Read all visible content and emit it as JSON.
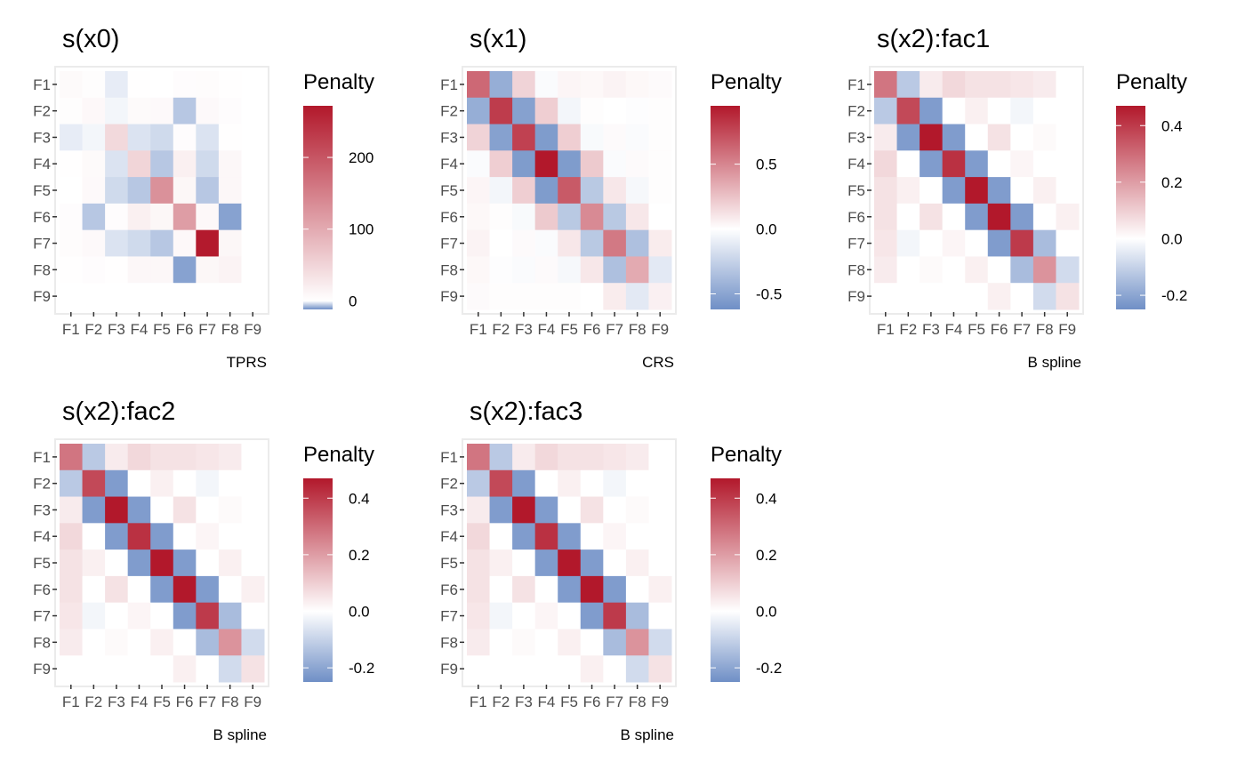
{
  "chart_data": [
    {
      "type": "heatmap",
      "title": "s(x0)",
      "caption": "TPRS",
      "legend_title": "Penalty",
      "categories": [
        "F1",
        "F2",
        "F3",
        "F4",
        "F5",
        "F6",
        "F7",
        "F8",
        "F9"
      ],
      "range": [
        -12,
        272
      ],
      "legend_ticks": [
        0,
        100,
        200
      ],
      "legend_tick_labels": [
        "0",
        "100",
        "200"
      ],
      "colors": {
        "low": "#6f8fc6",
        "mid": "#ffffff",
        "high": "#b2182b"
      },
      "values": [
        [
          6,
          2,
          -2,
          1,
          0,
          3,
          4,
          1,
          0
        ],
        [
          2,
          8,
          -1,
          6,
          7,
          -6,
          7,
          3,
          0
        ],
        [
          -2,
          -1,
          45,
          -3,
          -4,
          3,
          -3,
          1,
          0
        ],
        [
          1,
          6,
          -3,
          50,
          -6,
          18,
          -4,
          9,
          0
        ],
        [
          0,
          7,
          -4,
          -6,
          130,
          10,
          -6,
          9,
          0
        ],
        [
          3,
          -6,
          3,
          18,
          10,
          115,
          8,
          -10,
          0
        ],
        [
          4,
          7,
          -3,
          -4,
          -6,
          8,
          270,
          10,
          0
        ],
        [
          1,
          3,
          1,
          9,
          9,
          -10,
          10,
          14,
          0
        ],
        [
          0,
          0,
          0,
          0,
          0,
          0,
          0,
          0,
          0
        ]
      ]
    },
    {
      "type": "heatmap",
      "title": "s(x1)",
      "caption": "CRS",
      "legend_title": "Penalty",
      "categories": [
        "F1",
        "F2",
        "F3",
        "F4",
        "F5",
        "F6",
        "F7",
        "F8",
        "F9"
      ],
      "range": [
        -0.62,
        0.95
      ],
      "legend_ticks": [
        -0.5,
        0.0,
        0.5
      ],
      "legend_tick_labels": [
        "-0.5",
        "0.0",
        "0.5"
      ],
      "colors": {
        "low": "#6f8fc6",
        "mid": "#ffffff",
        "high": "#b2182b"
      },
      "values": [
        [
          0.62,
          -0.45,
          0.18,
          -0.02,
          0.04,
          0.03,
          0.05,
          0.03,
          0.02
        ],
        [
          -0.45,
          0.8,
          -0.52,
          0.2,
          -0.05,
          0.01,
          0.0,
          -0.01,
          0.01
        ],
        [
          0.18,
          -0.52,
          0.78,
          -0.55,
          0.2,
          -0.03,
          0.02,
          -0.02,
          0.01
        ],
        [
          -0.02,
          0.2,
          -0.55,
          0.95,
          -0.55,
          0.22,
          -0.02,
          0.02,
          0.01
        ],
        [
          0.04,
          -0.05,
          0.2,
          -0.55,
          0.68,
          -0.3,
          0.1,
          -0.04,
          0.01
        ],
        [
          0.03,
          0.01,
          -0.03,
          0.22,
          -0.3,
          0.48,
          -0.3,
          0.1,
          0.0
        ],
        [
          0.05,
          0.0,
          0.02,
          -0.02,
          0.1,
          -0.3,
          0.55,
          -0.35,
          0.08
        ],
        [
          0.03,
          -0.01,
          -0.02,
          0.02,
          -0.04,
          0.1,
          -0.35,
          0.35,
          -0.12
        ],
        [
          0.02,
          0.01,
          0.01,
          0.01,
          0.01,
          0.0,
          0.08,
          -0.12,
          0.06
        ]
      ]
    },
    {
      "type": "heatmap",
      "title": "s(x2):fac1",
      "caption": "B spline",
      "legend_title": "Penalty",
      "categories": [
        "F1",
        "F2",
        "F3",
        "F4",
        "F5",
        "F6",
        "F7",
        "F8",
        "F9"
      ],
      "range": [
        -0.25,
        0.47
      ],
      "legend_ticks": [
        -0.2,
        0.0,
        0.2,
        0.4
      ],
      "legend_tick_labels": [
        "-0.2",
        "0.0",
        "0.2",
        "0.4"
      ],
      "colors": {
        "low": "#6f8fc6",
        "mid": "#ffffff",
        "high": "#b2182b"
      },
      "values": [
        [
          0.28,
          -0.12,
          0.04,
          0.08,
          0.06,
          0.06,
          0.05,
          0.04,
          0.0
        ],
        [
          -0.12,
          0.37,
          -0.22,
          0.0,
          0.03,
          0.0,
          -0.02,
          0.0,
          0.0
        ],
        [
          0.04,
          -0.22,
          0.47,
          -0.22,
          0.0,
          0.06,
          0.0,
          0.01,
          0.0
        ],
        [
          0.08,
          0.0,
          -0.22,
          0.42,
          -0.22,
          0.0,
          0.02,
          0.0,
          0.0
        ],
        [
          0.06,
          0.03,
          0.0,
          -0.22,
          0.47,
          -0.22,
          0.0,
          0.03,
          0.0
        ],
        [
          0.06,
          0.0,
          0.06,
          0.0,
          -0.22,
          0.47,
          -0.22,
          0.0,
          0.03
        ],
        [
          0.05,
          -0.02,
          0.0,
          0.02,
          0.0,
          -0.22,
          0.4,
          -0.15,
          0.0
        ],
        [
          0.04,
          0.0,
          0.01,
          0.0,
          0.03,
          0.0,
          -0.15,
          0.22,
          -0.08
        ],
        [
          0.0,
          0.0,
          0.0,
          0.0,
          0.0,
          0.03,
          0.0,
          -0.08,
          0.06
        ]
      ]
    },
    {
      "type": "heatmap",
      "title": "s(x2):fac2",
      "caption": "B spline",
      "legend_title": "Penalty",
      "categories": [
        "F1",
        "F2",
        "F3",
        "F4",
        "F5",
        "F6",
        "F7",
        "F8",
        "F9"
      ],
      "range": [
        -0.25,
        0.47
      ],
      "legend_ticks": [
        -0.2,
        0.0,
        0.2,
        0.4
      ],
      "legend_tick_labels": [
        "-0.2",
        "0.0",
        "0.2",
        "0.4"
      ],
      "colors": {
        "low": "#6f8fc6",
        "mid": "#ffffff",
        "high": "#b2182b"
      },
      "values": [
        [
          0.28,
          -0.12,
          0.04,
          0.08,
          0.06,
          0.06,
          0.05,
          0.04,
          0.0
        ],
        [
          -0.12,
          0.37,
          -0.22,
          0.0,
          0.03,
          0.0,
          -0.02,
          0.0,
          0.0
        ],
        [
          0.04,
          -0.22,
          0.47,
          -0.22,
          0.0,
          0.06,
          0.0,
          0.01,
          0.0
        ],
        [
          0.08,
          0.0,
          -0.22,
          0.42,
          -0.22,
          0.0,
          0.02,
          0.0,
          0.0
        ],
        [
          0.06,
          0.03,
          0.0,
          -0.22,
          0.47,
          -0.22,
          0.0,
          0.03,
          0.0
        ],
        [
          0.06,
          0.0,
          0.06,
          0.0,
          -0.22,
          0.47,
          -0.22,
          0.0,
          0.03
        ],
        [
          0.05,
          -0.02,
          0.0,
          0.02,
          0.0,
          -0.22,
          0.4,
          -0.15,
          0.0
        ],
        [
          0.04,
          0.0,
          0.01,
          0.0,
          0.03,
          0.0,
          -0.15,
          0.22,
          -0.08
        ],
        [
          0.0,
          0.0,
          0.0,
          0.0,
          0.0,
          0.03,
          0.0,
          -0.08,
          0.06
        ]
      ]
    },
    {
      "type": "heatmap",
      "title": "s(x2):fac3",
      "caption": "B spline",
      "legend_title": "Penalty",
      "categories": [
        "F1",
        "F2",
        "F3",
        "F4",
        "F5",
        "F6",
        "F7",
        "F8",
        "F9"
      ],
      "range": [
        -0.25,
        0.47
      ],
      "legend_ticks": [
        -0.2,
        0.0,
        0.2,
        0.4
      ],
      "legend_tick_labels": [
        "-0.2",
        "0.0",
        "0.2",
        "0.4"
      ],
      "colors": {
        "low": "#6f8fc6",
        "mid": "#ffffff",
        "high": "#b2182b"
      },
      "values": [
        [
          0.28,
          -0.12,
          0.04,
          0.08,
          0.06,
          0.06,
          0.05,
          0.04,
          0.0
        ],
        [
          -0.12,
          0.37,
          -0.22,
          0.0,
          0.03,
          0.0,
          -0.02,
          0.0,
          0.0
        ],
        [
          0.04,
          -0.22,
          0.47,
          -0.22,
          0.0,
          0.06,
          0.0,
          0.01,
          0.0
        ],
        [
          0.08,
          0.0,
          -0.22,
          0.42,
          -0.22,
          0.0,
          0.02,
          0.0,
          0.0
        ],
        [
          0.06,
          0.03,
          0.0,
          -0.22,
          0.47,
          -0.22,
          0.0,
          0.03,
          0.0
        ],
        [
          0.06,
          0.0,
          0.06,
          0.0,
          -0.22,
          0.47,
          -0.22,
          0.0,
          0.03
        ],
        [
          0.05,
          -0.02,
          0.0,
          0.02,
          0.0,
          -0.22,
          0.4,
          -0.15,
          0.0
        ],
        [
          0.04,
          0.0,
          0.01,
          0.0,
          0.03,
          0.0,
          -0.15,
          0.22,
          -0.08
        ],
        [
          0.0,
          0.0,
          0.0,
          0.0,
          0.0,
          0.03,
          0.0,
          -0.08,
          0.06
        ]
      ]
    }
  ]
}
